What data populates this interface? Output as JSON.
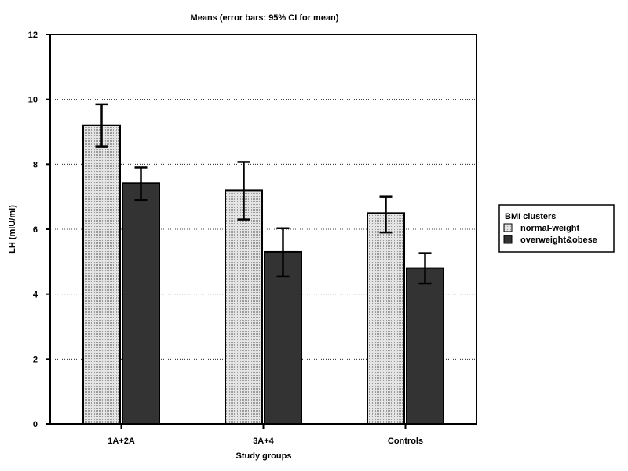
{
  "chart_data": {
    "type": "bar",
    "title": "Means  (error bars: 95% CI for mean)",
    "xlabel": "Study groups",
    "ylabel": "LH (mIU/ml)",
    "ylim": [
      0,
      12
    ],
    "yticks": [
      "0",
      "2",
      "4",
      "6",
      "8",
      "10",
      "12"
    ],
    "categories": [
      "1A+2A",
      "3A+4",
      "Controls"
    ],
    "grid": "horizontal dotted",
    "legend": {
      "title": "BMI clusters",
      "placement": "right"
    },
    "series": [
      {
        "name": "normal-weight",
        "color": "#d0d0d0",
        "pattern": "dotted light gray",
        "values": [
          9.2,
          7.2,
          6.5
        ],
        "ci_lower": [
          8.55,
          6.3,
          5.9
        ],
        "ci_upper": [
          9.85,
          8.07,
          7.0
        ]
      },
      {
        "name": "overweight&obese",
        "color": "#333333",
        "values": [
          7.42,
          5.3,
          4.8
        ],
        "ci_lower": [
          6.9,
          4.55,
          4.33
        ],
        "ci_upper": [
          7.9,
          6.03,
          5.26
        ]
      }
    ]
  }
}
